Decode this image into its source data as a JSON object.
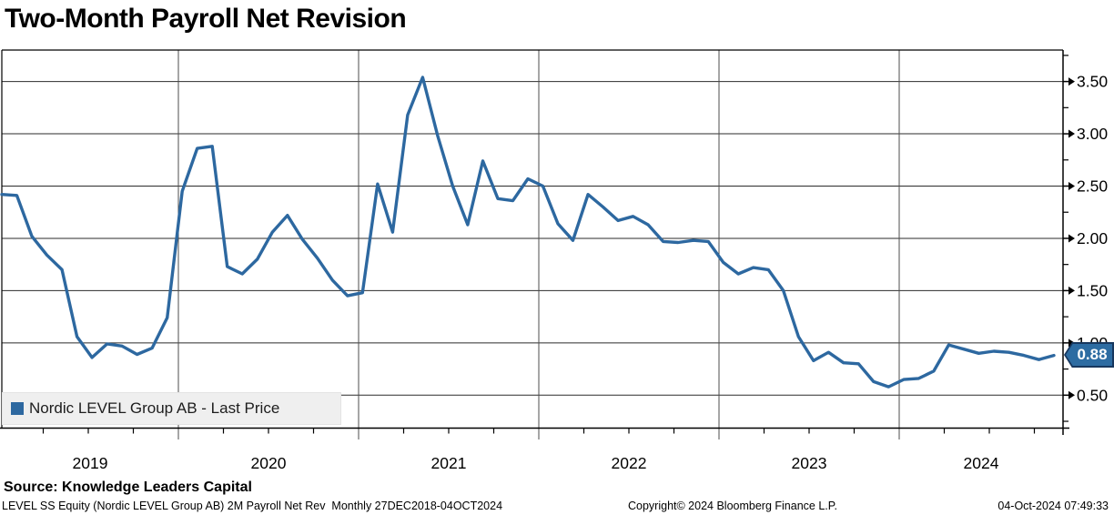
{
  "title": "Two-Month Payroll Net Revision",
  "legend": {
    "label": "Nordic LEVEL Group AB - Last Price"
  },
  "badge": {
    "value": "0.88"
  },
  "footer": {
    "source": "Source: Knowledge Leaders Capital",
    "description": "LEVEL SS Equity (Nordic LEVEL Group AB) 2M Payroll Net Rev  Monthly 27DEC2018-04OCT2024",
    "copyright": "Copyright© 2024 Bloomberg Finance L.P.",
    "timestamp": "04-Oct-2024 07:49:33"
  },
  "colors": {
    "line": "#2d68a0",
    "badge_fill": "#2d6ca2",
    "badge_border": "#17375e",
    "legend_bg": "#efefef",
    "grid": "#2b2b2b",
    "year_divider": "#4d4d4d",
    "axis": "#000000",
    "text": "#000000"
  },
  "chart_data": {
    "type": "line",
    "title": "Two-Month Payroll Net Revision",
    "period": "Monthly 27DEC2018-04OCT2024",
    "y_axis_side": "right",
    "grid": true,
    "legend_position": "bottom-left",
    "ylim": [
      0.2,
      3.8
    ],
    "y_ticks": [
      0.5,
      1.0,
      1.5,
      2.0,
      2.5,
      3.0,
      3.5
    ],
    "y_tick_labels": [
      "0.50",
      "1.00",
      "1.50",
      "2.00",
      "2.50",
      "3.00",
      "3.50"
    ],
    "y_minor_ticks": [
      0.25,
      0.75,
      1.25,
      1.75,
      2.25,
      2.75,
      3.25,
      3.75
    ],
    "x_year_labels": [
      "2019",
      "2020",
      "2021",
      "2022",
      "2023",
      "2024"
    ],
    "last_value": 0.88,
    "series": [
      {
        "name": "Nordic LEVEL Group AB - Last Price",
        "x": [
          "2018-12",
          "2019-01",
          "2019-02",
          "2019-03",
          "2019-04",
          "2019-05",
          "2019-06",
          "2019-07",
          "2019-08",
          "2019-09",
          "2019-10",
          "2019-11",
          "2019-12",
          "2020-01",
          "2020-02",
          "2020-03",
          "2020-04",
          "2020-05",
          "2020-06",
          "2020-07",
          "2020-08",
          "2020-09",
          "2020-10",
          "2020-11",
          "2020-12",
          "2021-01",
          "2021-02",
          "2021-03",
          "2021-04",
          "2021-05",
          "2021-06",
          "2021-07",
          "2021-08",
          "2021-09",
          "2021-10",
          "2021-11",
          "2021-12",
          "2022-01",
          "2022-02",
          "2022-03",
          "2022-04",
          "2022-05",
          "2022-06",
          "2022-07",
          "2022-08",
          "2022-09",
          "2022-10",
          "2022-11",
          "2022-12",
          "2023-01",
          "2023-02",
          "2023-03",
          "2023-04",
          "2023-05",
          "2023-06",
          "2023-07",
          "2023-08",
          "2023-09",
          "2023-10",
          "2023-11",
          "2023-12",
          "2024-01",
          "2024-02",
          "2024-03",
          "2024-04",
          "2024-05",
          "2024-06",
          "2024-07",
          "2024-08",
          "2024-09",
          "2024-10"
        ],
        "values": [
          2.42,
          2.41,
          2.02,
          1.84,
          1.7,
          1.06,
          0.86,
          0.99,
          0.97,
          0.89,
          0.95,
          1.24,
          2.45,
          2.86,
          2.88,
          1.73,
          1.66,
          1.8,
          2.06,
          2.22,
          1.99,
          1.81,
          1.6,
          1.45,
          1.48,
          2.52,
          2.06,
          3.18,
          3.54,
          2.98,
          2.5,
          2.13,
          2.74,
          2.38,
          2.36,
          2.57,
          2.5,
          2.14,
          1.98,
          2.42,
          2.3,
          2.17,
          2.21,
          2.13,
          1.97,
          1.96,
          1.98,
          1.97,
          1.77,
          1.66,
          1.72,
          1.7,
          1.5,
          1.06,
          0.83,
          0.91,
          0.81,
          0.8,
          0.63,
          0.58,
          0.65,
          0.66,
          0.73,
          0.98,
          0.94,
          0.9,
          0.92,
          0.91,
          0.88,
          0.84,
          0.88
        ]
      }
    ]
  }
}
